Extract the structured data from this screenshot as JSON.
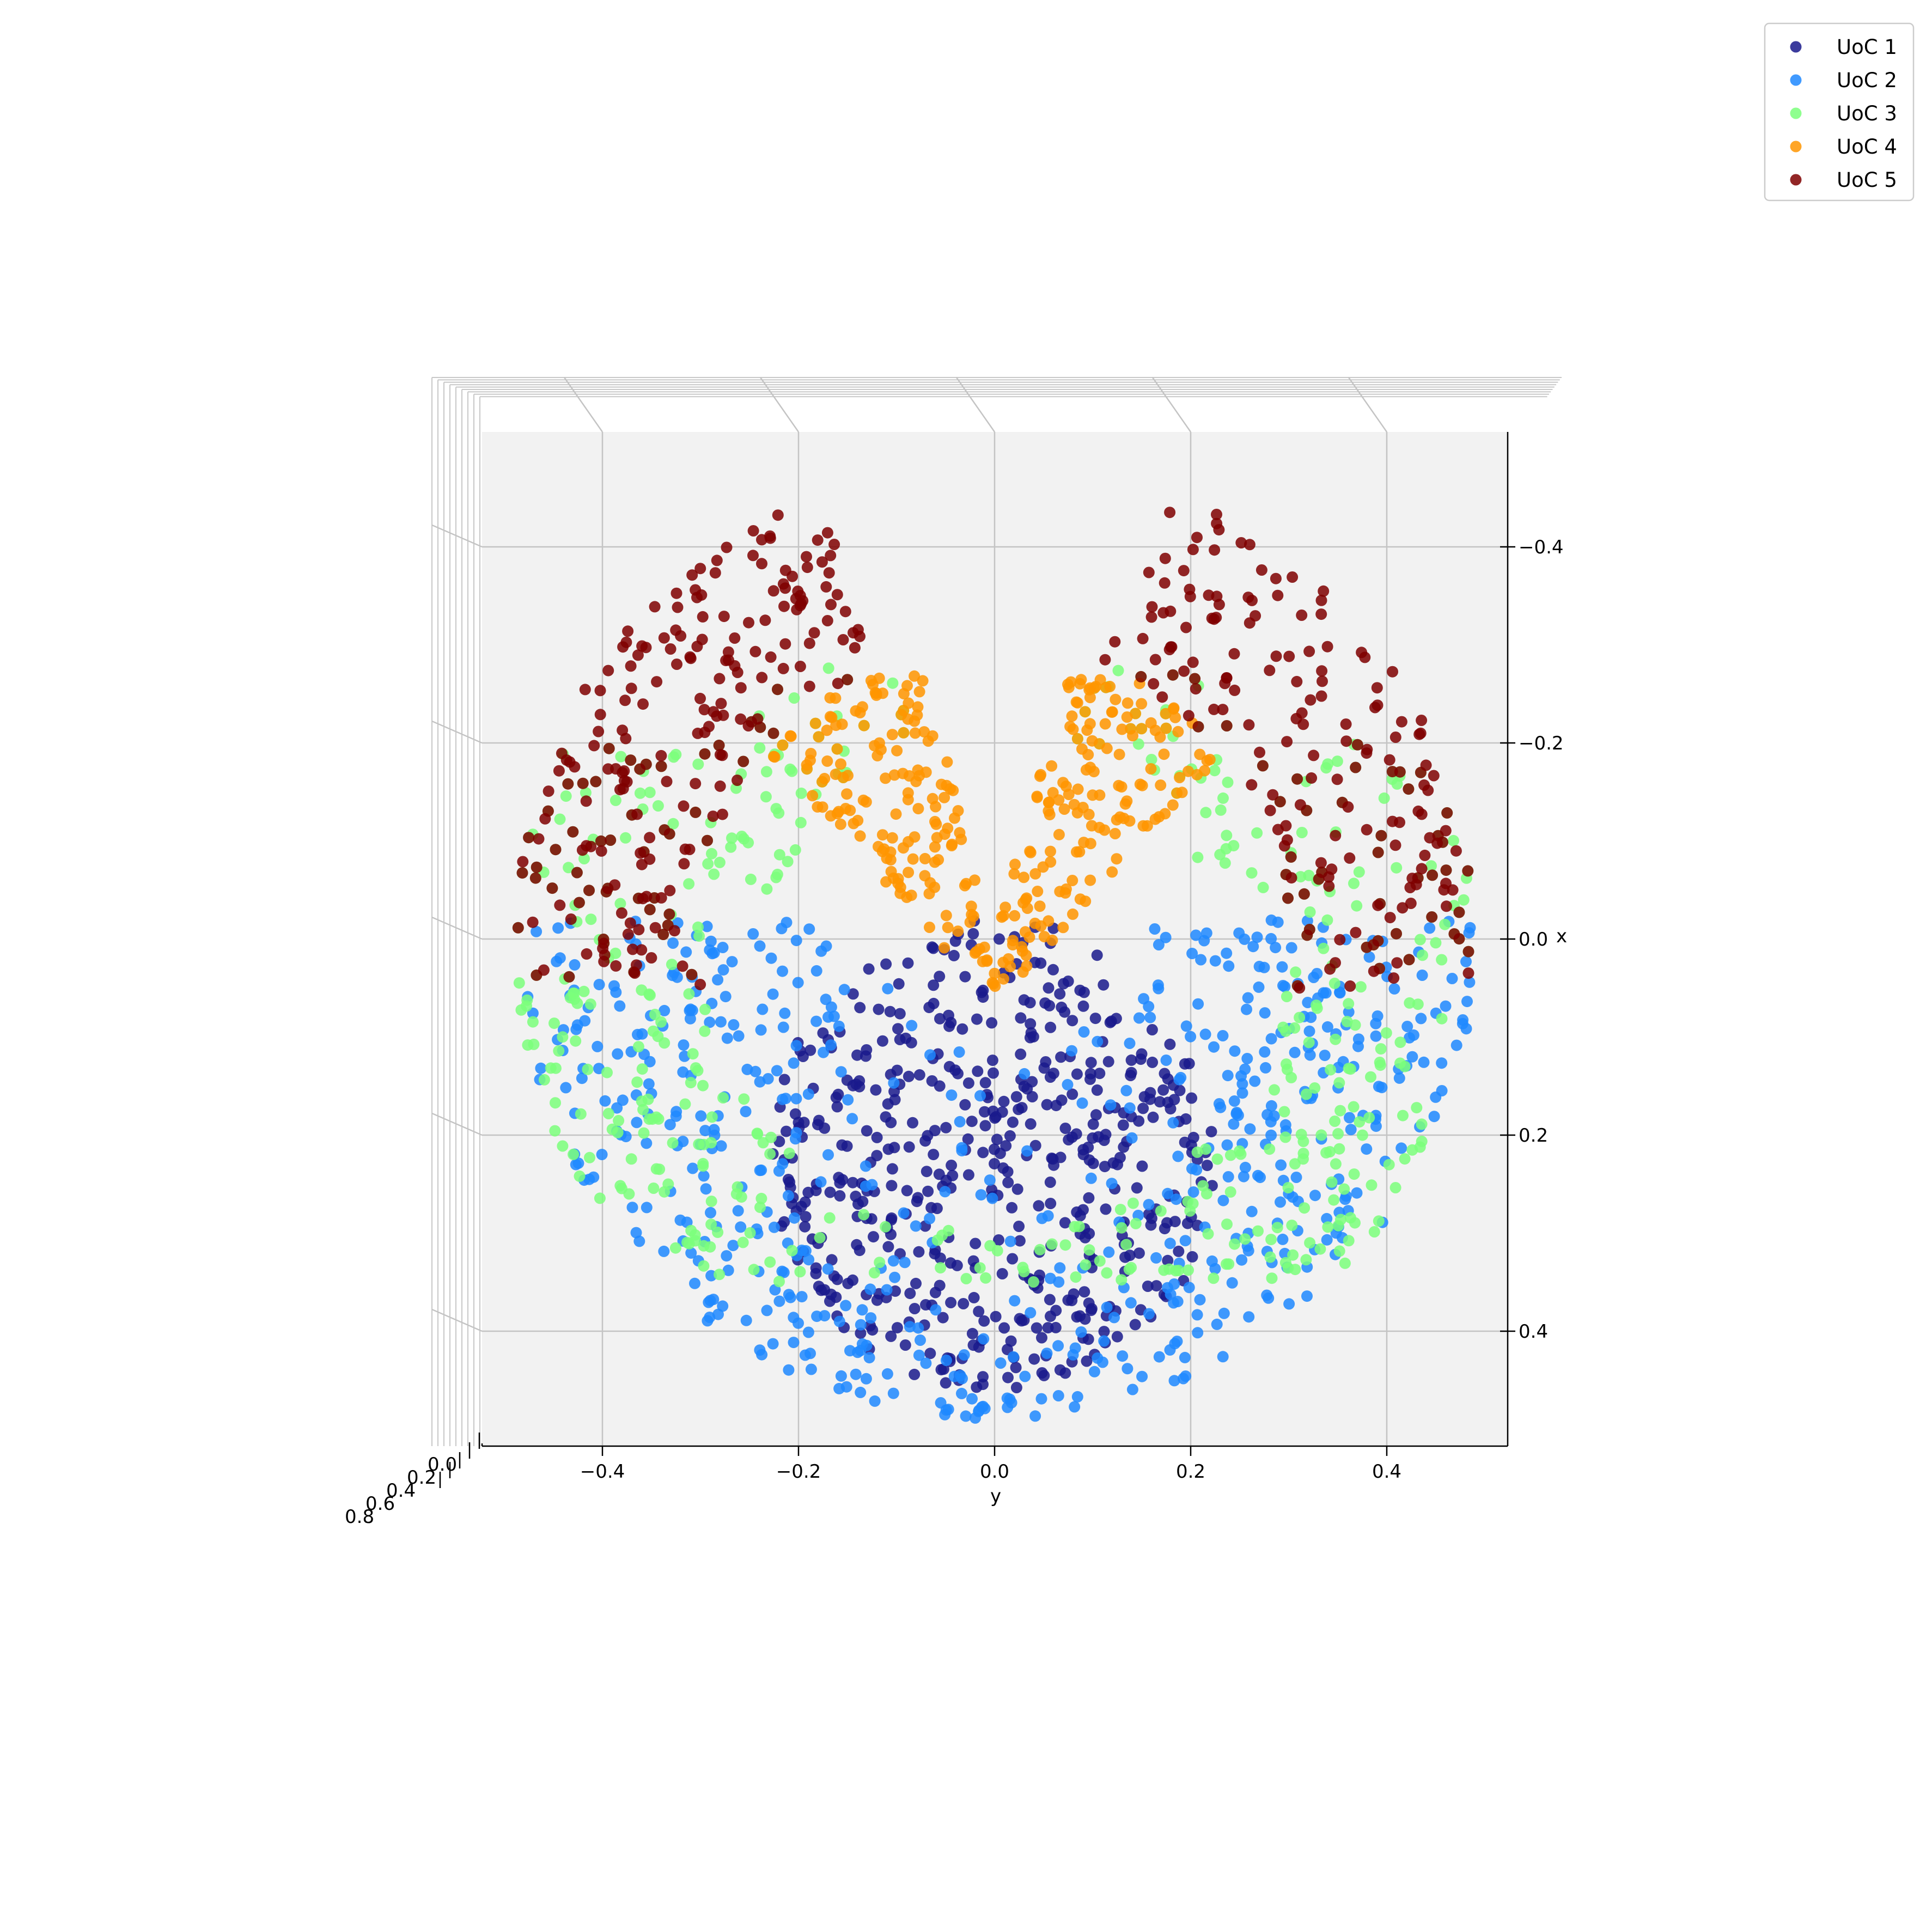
{
  "chart_data": {
    "type": "scatter",
    "title": "",
    "xlabel": "y",
    "ylabel": "x",
    "zlabel": "",
    "x_ticks": [
      "−0.4",
      "−0.2",
      "0.0",
      "0.2",
      "0.4"
    ],
    "x_tick_values": [
      -0.4,
      -0.2,
      0.0,
      0.2,
      0.4
    ],
    "y_ticks": [
      "−0.4",
      "−0.2",
      "0.0",
      "0.2",
      "0.4"
    ],
    "y_tick_values": [
      -0.4,
      -0.2,
      0.0,
      0.2,
      0.4
    ],
    "z_ticks": [
      "0.0",
      "0.2",
      "0.4",
      "0.6",
      "0.8"
    ],
    "xlim": [
      -0.52,
      0.52
    ],
    "ylim": [
      -0.52,
      0.52
    ],
    "grid": true,
    "legend_position": "top-right",
    "series": [
      {
        "name": "UoC 1",
        "color": "#1a1a8c",
        "region": "core",
        "count": 520,
        "points_sample": [
          [
            -0.2,
            0.25
          ],
          [
            0.0,
            0.2
          ],
          [
            0.15,
            0.25
          ],
          [
            -0.05,
            0.35
          ],
          [
            0.05,
            0.4
          ],
          [
            0.1,
            0.1
          ],
          [
            -0.1,
            0.15
          ]
        ]
      },
      {
        "name": "UoC 2",
        "color": "#1e88ff",
        "region": "ring-lower",
        "count": 600,
        "points_sample": [
          [
            -0.3,
            0.2
          ],
          [
            0.3,
            0.2
          ],
          [
            0.0,
            0.48
          ],
          [
            -0.2,
            0.05
          ],
          [
            0.2,
            0.05
          ],
          [
            -0.15,
            0.42
          ],
          [
            0.15,
            0.42
          ]
        ]
      },
      {
        "name": "UoC 3",
        "color": "#7bff7b",
        "region": "ring-middle",
        "count": 520,
        "points_sample": [
          [
            -0.4,
            0.0
          ],
          [
            0.4,
            0.05
          ],
          [
            -0.3,
            -0.15
          ],
          [
            0.3,
            -0.15
          ],
          [
            0.4,
            0.2
          ],
          [
            -0.4,
            0.15
          ]
        ]
      },
      {
        "name": "UoC 4",
        "color": "#ff9500",
        "region": "v-arms",
        "count": 320,
        "points_sample": [
          [
            -0.15,
            -0.15
          ],
          [
            0.12,
            -0.12
          ],
          [
            0.0,
            0.0
          ],
          [
            -0.1,
            -0.2
          ],
          [
            0.1,
            -0.2
          ]
        ]
      },
      {
        "name": "UoC 5",
        "color": "#7f0000",
        "region": "ring-upper",
        "count": 420,
        "points_sample": [
          [
            -0.3,
            -0.3
          ],
          [
            0.3,
            -0.3
          ],
          [
            -0.45,
            -0.1
          ],
          [
            0.45,
            -0.05
          ],
          [
            -0.2,
            -0.4
          ],
          [
            0.2,
            -0.4
          ]
        ]
      }
    ]
  }
}
